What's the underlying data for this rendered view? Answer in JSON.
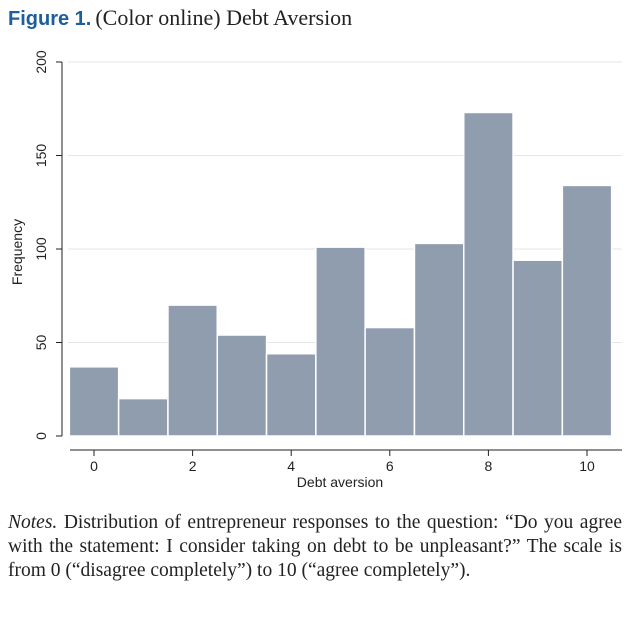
{
  "figure": {
    "label": "Figure 1.",
    "title": "(Color online) Debt Aversion"
  },
  "notes": {
    "lead": "Notes.",
    "text": "Distribution of entrepreneur responses to the question: “Do you agree with the statement: I consider taking on debt to be unpleasant?” The scale is from 0 (“disagree completely”) to 10 (“agree completely”)."
  },
  "chart_data": {
    "type": "bar",
    "title": "",
    "xlabel": "Debt aversion",
    "ylabel": "Frequency",
    "categories": [
      0,
      1,
      2,
      3,
      4,
      5,
      6,
      7,
      8,
      9,
      10
    ],
    "values": [
      37,
      20,
      70,
      54,
      44,
      101,
      58,
      103,
      173,
      94,
      134
    ],
    "xticks": [
      0,
      2,
      4,
      6,
      8,
      10
    ],
    "yticks": [
      0,
      50,
      100,
      150,
      200
    ],
    "ylim": [
      0,
      200
    ],
    "grid": true,
    "bar_color": "#909dae",
    "bar_edge_color": "#ffffff",
    "grid_color": "#e6e6e6"
  }
}
